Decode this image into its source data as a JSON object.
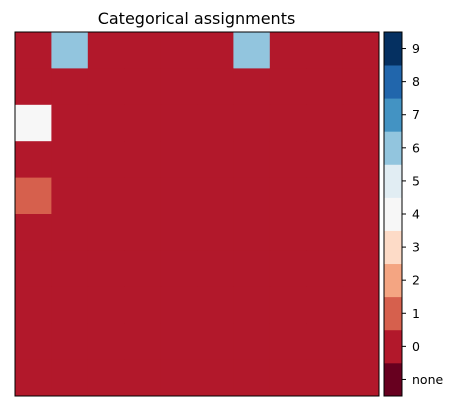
{
  "chart_data": {
    "type": "heatmap",
    "title": "Categorical assignments",
    "rows": 10,
    "cols": 10,
    "grid": false,
    "values": [
      [
        0,
        6,
        0,
        0,
        0,
        0,
        6,
        0,
        0,
        0
      ],
      [
        0,
        0,
        0,
        0,
        0,
        0,
        0,
        0,
        0,
        0
      ],
      [
        4,
        0,
        0,
        0,
        0,
        0,
        0,
        0,
        0,
        0
      ],
      [
        0,
        0,
        0,
        0,
        0,
        0,
        0,
        0,
        0,
        0
      ],
      [
        1,
        0,
        0,
        0,
        0,
        0,
        0,
        0,
        0,
        0
      ],
      [
        0,
        0,
        0,
        0,
        0,
        0,
        0,
        0,
        0,
        0
      ],
      [
        0,
        0,
        0,
        0,
        0,
        0,
        0,
        0,
        0,
        0
      ],
      [
        0,
        0,
        0,
        0,
        0,
        0,
        0,
        0,
        0,
        0
      ],
      [
        0,
        0,
        0,
        0,
        0,
        0,
        0,
        0,
        0,
        0
      ],
      [
        0,
        0,
        0,
        0,
        0,
        0,
        0,
        0,
        0,
        0
      ]
    ],
    "colorbar": {
      "categories": [
        "none",
        "0",
        "1",
        "2",
        "3",
        "4",
        "5",
        "6",
        "7",
        "8",
        "9"
      ],
      "colors": [
        "#67001f",
        "#b2182b",
        "#d6604d",
        "#f4a582",
        "#fddbc7",
        "#f7f7f7",
        "#e1edf3",
        "#92c5de",
        "#4393c3",
        "#2166ac",
        "#053061"
      ]
    }
  }
}
